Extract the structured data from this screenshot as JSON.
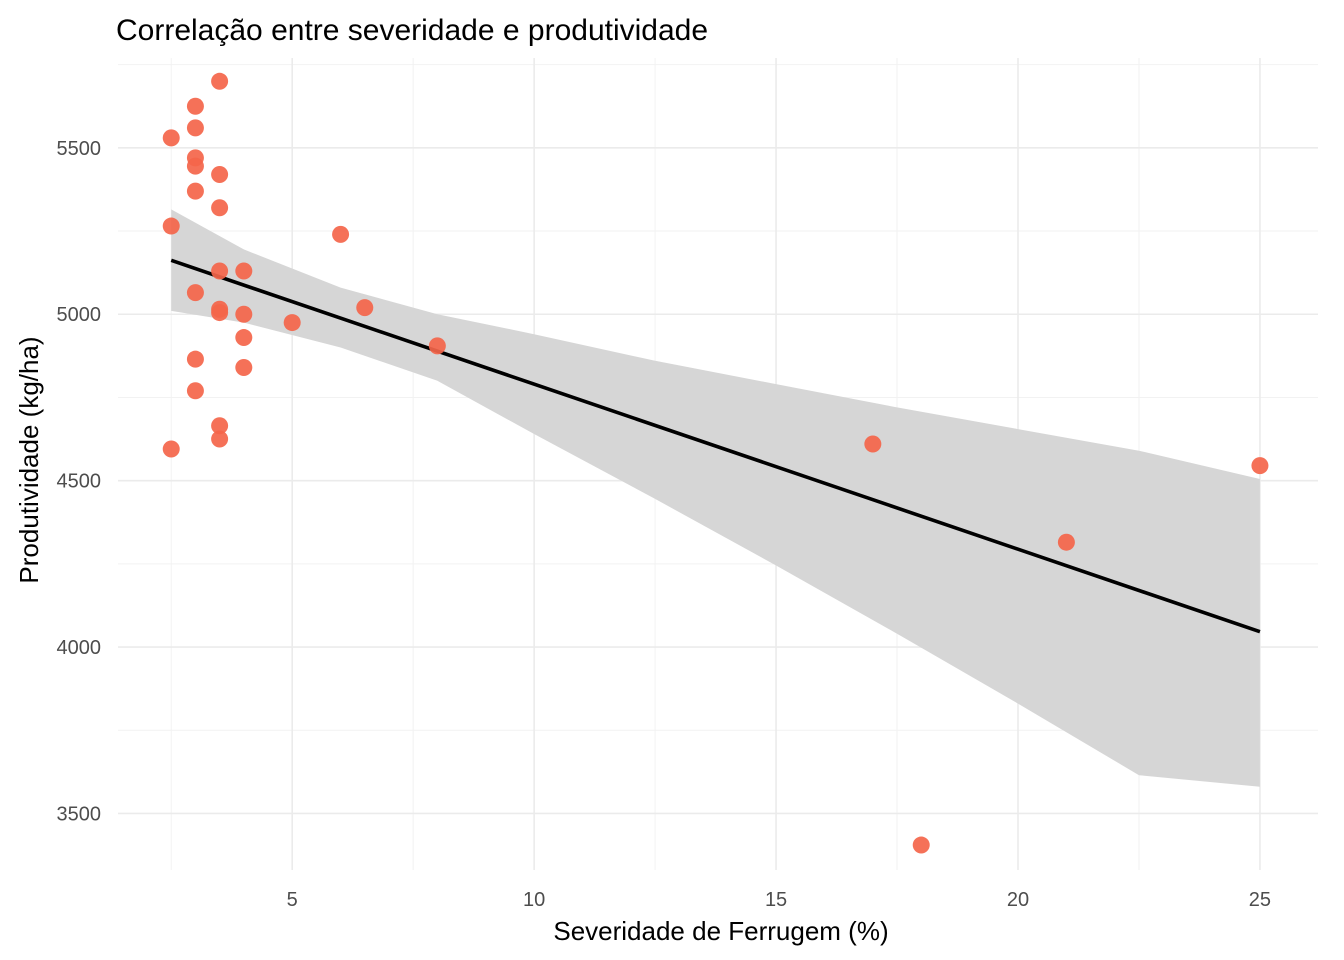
{
  "chart_data": {
    "type": "scatter",
    "title": "Correlação entre severidade e produtividade",
    "xlabel": "Severidade de Ferrugem (%)",
    "ylabel": "Produtividade (kg/ha)",
    "xlim": [
      1.4,
      26.2
    ],
    "ylim": [
      3330,
      5770
    ],
    "x_ticks": [
      5,
      10,
      15,
      20,
      25
    ],
    "y_ticks": [
      3500,
      4000,
      4500,
      5000,
      5500
    ],
    "x_tick_labels": [
      "5",
      "10",
      "15",
      "20",
      "25"
    ],
    "y_tick_labels": [
      "3500",
      "4000",
      "4500",
      "5000",
      "5500"
    ],
    "grid": true,
    "legend": "none",
    "colors": {
      "points": "#f4654a",
      "fit_line": "#000000",
      "ribbon": "#d6d6d6"
    },
    "points": [
      {
        "x": 2.5,
        "y": 5530
      },
      {
        "x": 2.5,
        "y": 5265
      },
      {
        "x": 2.5,
        "y": 4595
      },
      {
        "x": 3.0,
        "y": 5625
      },
      {
        "x": 3.0,
        "y": 5560
      },
      {
        "x": 3.0,
        "y": 5470
      },
      {
        "x": 3.0,
        "y": 5445
      },
      {
        "x": 3.0,
        "y": 5370
      },
      {
        "x": 3.0,
        "y": 5065
      },
      {
        "x": 3.0,
        "y": 4865
      },
      {
        "x": 3.0,
        "y": 4770
      },
      {
        "x": 3.5,
        "y": 5700
      },
      {
        "x": 3.5,
        "y": 5420
      },
      {
        "x": 3.5,
        "y": 5320
      },
      {
        "x": 3.5,
        "y": 5130
      },
      {
        "x": 3.5,
        "y": 5015
      },
      {
        "x": 3.5,
        "y": 5005
      },
      {
        "x": 3.5,
        "y": 4665
      },
      {
        "x": 3.5,
        "y": 4625
      },
      {
        "x": 4.0,
        "y": 5130
      },
      {
        "x": 4.0,
        "y": 5000
      },
      {
        "x": 4.0,
        "y": 4930
      },
      {
        "x": 4.0,
        "y": 4840
      },
      {
        "x": 5.0,
        "y": 4975
      },
      {
        "x": 6.0,
        "y": 5240
      },
      {
        "x": 6.5,
        "y": 5020
      },
      {
        "x": 8.0,
        "y": 4905
      },
      {
        "x": 17.0,
        "y": 4610
      },
      {
        "x": 18.0,
        "y": 3405
      },
      {
        "x": 21.0,
        "y": 4315
      },
      {
        "x": 25.0,
        "y": 4545
      }
    ],
    "fit_line": [
      {
        "x": 2.5,
        "y": 5162
      },
      {
        "x": 25.0,
        "y": 4046
      }
    ],
    "confidence_band": [
      {
        "x": 2.5,
        "lower": 5010,
        "upper": 5315
      },
      {
        "x": 4.0,
        "lower": 4975,
        "upper": 5195
      },
      {
        "x": 6.0,
        "lower": 4900,
        "upper": 5080
      },
      {
        "x": 8.0,
        "lower": 4800,
        "upper": 5000
      },
      {
        "x": 10.0,
        "lower": 4640,
        "upper": 4940
      },
      {
        "x": 12.5,
        "lower": 4445,
        "upper": 4860
      },
      {
        "x": 15.0,
        "lower": 4245,
        "upper": 4790
      },
      {
        "x": 17.5,
        "lower": 4040,
        "upper": 4720
      },
      {
        "x": 20.0,
        "lower": 3830,
        "upper": 4655
      },
      {
        "x": 22.5,
        "lower": 3615,
        "upper": 4590
      },
      {
        "x": 25.0,
        "lower": 3580,
        "upper": 4505
      }
    ]
  }
}
